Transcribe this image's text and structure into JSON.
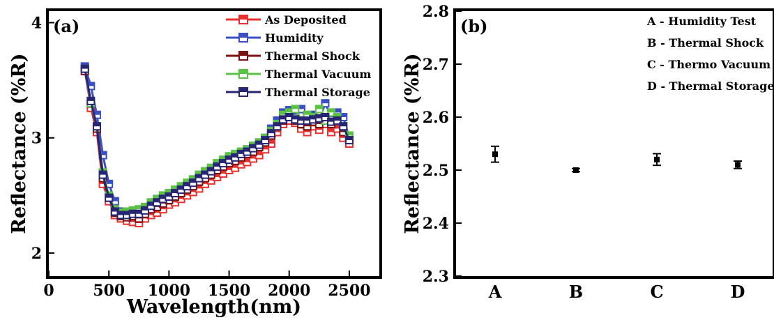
{
  "chart_data": [
    {
      "type": "line",
      "panel_label": "(a)",
      "xlabel": "Wavelength(nm)",
      "ylabel": "Reflectance (%R)",
      "xlim": [
        0,
        2750
      ],
      "ylim": [
        1.8,
        4.1
      ],
      "xticks": [
        0,
        500,
        1000,
        1500,
        2000,
        2500
      ],
      "xtick_labels": [
        "0",
        "500",
        "1000",
        "1500",
        "2000",
        "2500"
      ],
      "yticks": [
        2,
        3,
        4
      ],
      "ytick_labels": [
        "2",
        "3",
        "4"
      ],
      "grid": false,
      "legend_position": "top-right",
      "x": [
        300,
        350,
        400,
        450,
        500,
        550,
        600,
        650,
        700,
        750,
        800,
        850,
        900,
        950,
        1000,
        1050,
        1100,
        1150,
        1200,
        1250,
        1300,
        1350,
        1400,
        1450,
        1500,
        1550,
        1600,
        1650,
        1700,
        1750,
        1800,
        1850,
        1900,
        1950,
        2000,
        2050,
        2100,
        2150,
        2200,
        2250,
        2300,
        2350,
        2400,
        2450,
        2500
      ],
      "series": [
        {
          "name": "As Deposited",
          "color": "#e8302e",
          "values": [
            3.6,
            3.26,
            3.05,
            2.6,
            2.45,
            2.33,
            2.3,
            2.28,
            2.27,
            2.26,
            2.3,
            2.33,
            2.35,
            2.38,
            2.42,
            2.44,
            2.47,
            2.5,
            2.53,
            2.56,
            2.6,
            2.63,
            2.66,
            2.69,
            2.72,
            2.74,
            2.77,
            2.79,
            2.82,
            2.85,
            2.9,
            2.95,
            3.05,
            3.12,
            3.15,
            3.13,
            3.08,
            3.05,
            3.1,
            3.07,
            3.12,
            3.05,
            3.08,
            3.0,
            2.95
          ]
        },
        {
          "name": "Humidity",
          "color": "#3b4fc4",
          "values": [
            3.62,
            3.45,
            3.2,
            2.85,
            2.6,
            2.45,
            2.36,
            2.33,
            2.35,
            2.35,
            2.38,
            2.42,
            2.45,
            2.48,
            2.5,
            2.53,
            2.56,
            2.58,
            2.62,
            2.65,
            2.69,
            2.72,
            2.76,
            2.79,
            2.83,
            2.85,
            2.88,
            2.9,
            2.93,
            2.96,
            3.0,
            3.08,
            3.15,
            3.22,
            3.24,
            3.2,
            3.25,
            3.15,
            3.2,
            3.15,
            3.3,
            3.18,
            3.22,
            3.18,
            3.0
          ]
        },
        {
          "name": "Thermal Shock",
          "color": "#7a1212",
          "values": [
            3.58,
            3.3,
            3.08,
            2.65,
            2.48,
            2.35,
            2.32,
            2.31,
            2.32,
            2.3,
            2.34,
            2.38,
            2.4,
            2.43,
            2.46,
            2.49,
            2.52,
            2.55,
            2.58,
            2.62,
            2.65,
            2.68,
            2.72,
            2.75,
            2.78,
            2.8,
            2.83,
            2.86,
            2.88,
            2.92,
            2.96,
            3.02,
            3.1,
            3.15,
            3.18,
            3.15,
            3.12,
            3.1,
            3.14,
            3.12,
            3.18,
            3.12,
            3.16,
            3.05,
            2.98
          ]
        },
        {
          "name": "Thermal Vacuum",
          "color": "#5cc245",
          "values": [
            3.6,
            3.3,
            3.1,
            2.7,
            2.5,
            2.38,
            2.35,
            2.36,
            2.37,
            2.38,
            2.4,
            2.44,
            2.47,
            2.5,
            2.52,
            2.55,
            2.58,
            2.61,
            2.64,
            2.68,
            2.71,
            2.74,
            2.78,
            2.81,
            2.84,
            2.86,
            2.88,
            2.9,
            2.93,
            2.96,
            3.0,
            3.06,
            3.12,
            3.2,
            3.22,
            3.25,
            3.15,
            3.2,
            3.18,
            3.25,
            3.15,
            3.22,
            3.18,
            3.1,
            3.02
          ]
        },
        {
          "name": "Thermal Storage",
          "color": "#262673",
          "values": [
            3.6,
            3.32,
            3.1,
            2.68,
            2.48,
            2.36,
            2.33,
            2.33,
            2.34,
            2.34,
            2.37,
            2.41,
            2.44,
            2.47,
            2.49,
            2.52,
            2.55,
            2.58,
            2.61,
            2.65,
            2.68,
            2.71,
            2.75,
            2.78,
            2.81,
            2.83,
            2.86,
            2.88,
            2.91,
            2.94,
            2.98,
            3.04,
            3.1,
            3.16,
            3.18,
            3.16,
            3.15,
            3.15,
            3.16,
            3.17,
            3.18,
            3.14,
            3.15,
            3.1,
            2.98
          ]
        }
      ]
    },
    {
      "type": "scatter",
      "panel_label": "(b)",
      "xlabel": "",
      "ylabel": "Reflectance (%R)",
      "categories": [
        "A",
        "B",
        "C",
        "D"
      ],
      "ylim": [
        2.3,
        2.8
      ],
      "yticks": [
        2.3,
        2.4,
        2.5,
        2.6,
        2.7,
        2.8
      ],
      "ytick_labels": [
        "2.3",
        "2.4",
        "2.5",
        "2.6",
        "2.7",
        "2.8"
      ],
      "grid": false,
      "values": [
        2.53,
        2.5,
        2.52,
        2.51
      ],
      "errors": [
        0.015,
        0.003,
        0.011,
        0.007
      ],
      "marker_color": "#000000",
      "annotations": [
        "A - Humidity Test",
        "B - Thermal Shock",
        "C - Thermo Vacuum",
        "D - Thermal Storage"
      ]
    }
  ]
}
